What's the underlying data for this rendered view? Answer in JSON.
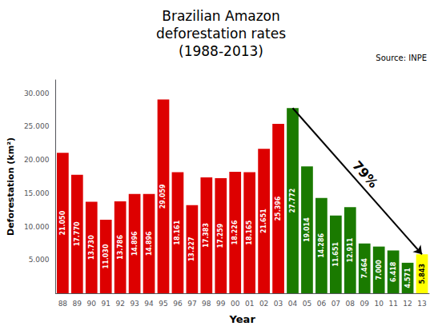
{
  "chart_data": {
    "type": "bar",
    "title": "Brazilian Amazon\ndeforestation rates\n(1988-2013)",
    "subtitle": "Source: INPE",
    "xlabel": "Year",
    "ylabel": "Deforestation (km²)",
    "categories": [
      "88",
      "89",
      "90",
      "91",
      "92",
      "93",
      "94",
      "95",
      "96",
      "97",
      "98",
      "99",
      "00",
      "01",
      "02",
      "03",
      "04",
      "05",
      "06",
      "07",
      "08",
      "09",
      "10",
      "11",
      "12",
      "13"
    ],
    "values": [
      21050,
      17770,
      13730,
      11030,
      13786,
      14896,
      14896,
      29059,
      18161,
      13227,
      17383,
      17259,
      18226,
      18165,
      21651,
      25396,
      27772,
      19014,
      14286,
      11651,
      12911,
      7464,
      7000,
      6418,
      4571,
      5843
    ],
    "value_labels": [
      "21.050",
      "17.770",
      "13.730",
      "11.030",
      "13.786",
      "14.896",
      "14.896",
      "29.059",
      "18.161",
      "13.227",
      "17.383",
      "17.259",
      "18.226",
      "18.165",
      "21.651",
      "25.396",
      "27.772",
      "19.014",
      "14.286",
      "11.651",
      "12.911",
      "7.464",
      "7.000",
      "6.418",
      "4.571",
      "5.843"
    ],
    "data_labels": true,
    "colors": [
      "#dd0000",
      "#dd0000",
      "#dd0000",
      "#dd0000",
      "#dd0000",
      "#dd0000",
      "#dd0000",
      "#dd0000",
      "#dd0000",
      "#dd0000",
      "#dd0000",
      "#dd0000",
      "#dd0000",
      "#dd0000",
      "#dd0000",
      "#dd0000",
      "#1a7a00",
      "#1a7a00",
      "#1a7a00",
      "#1a7a00",
      "#1a7a00",
      "#1a7a00",
      "#1a7a00",
      "#1a7a00",
      "#1a7a00",
      "#ffff00"
    ],
    "ylim": [
      0,
      32000
    ],
    "yticks": [
      {
        "value": 5000,
        "label": "5.000"
      },
      {
        "value": 10000,
        "label": "10.000"
      },
      {
        "value": 15000,
        "label": "15.000"
      },
      {
        "value": 20000,
        "label": "20.000"
      },
      {
        "value": 25000,
        "label": "25.000"
      },
      {
        "value": 30000,
        "label": "30.000"
      }
    ],
    "grid": false,
    "annotations": [
      {
        "text": "79%",
        "arrow_from": "04",
        "arrow_to": "13"
      }
    ]
  }
}
